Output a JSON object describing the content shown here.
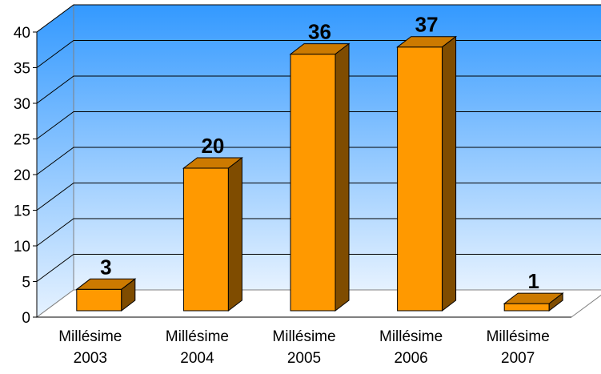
{
  "chart_data": {
    "type": "bar",
    "title": "",
    "xlabel": "",
    "ylabel": "",
    "categories": [
      [
        "Millésime",
        "2003"
      ],
      [
        "Millésime",
        "2004"
      ],
      [
        "Millésime",
        "2005"
      ],
      [
        "Millésime",
        "2006"
      ],
      [
        "Millésime",
        "2007"
      ]
    ],
    "values": [
      3,
      20,
      36,
      37,
      1
    ],
    "ylim": [
      0,
      40
    ],
    "yticks": [
      "0",
      "5",
      "10",
      "15",
      "20",
      "25",
      "30",
      "35",
      "40"
    ],
    "grid": true,
    "legend": "none",
    "colors": {
      "bar_front": "#FF9900",
      "bar_top": "#CC7A00",
      "bar_side": "#7F4C00",
      "wall_top": "#3399FF",
      "wall_bottom": "#E6F2FF",
      "floor": "#FFFFFF",
      "gridline": "#000000"
    }
  }
}
